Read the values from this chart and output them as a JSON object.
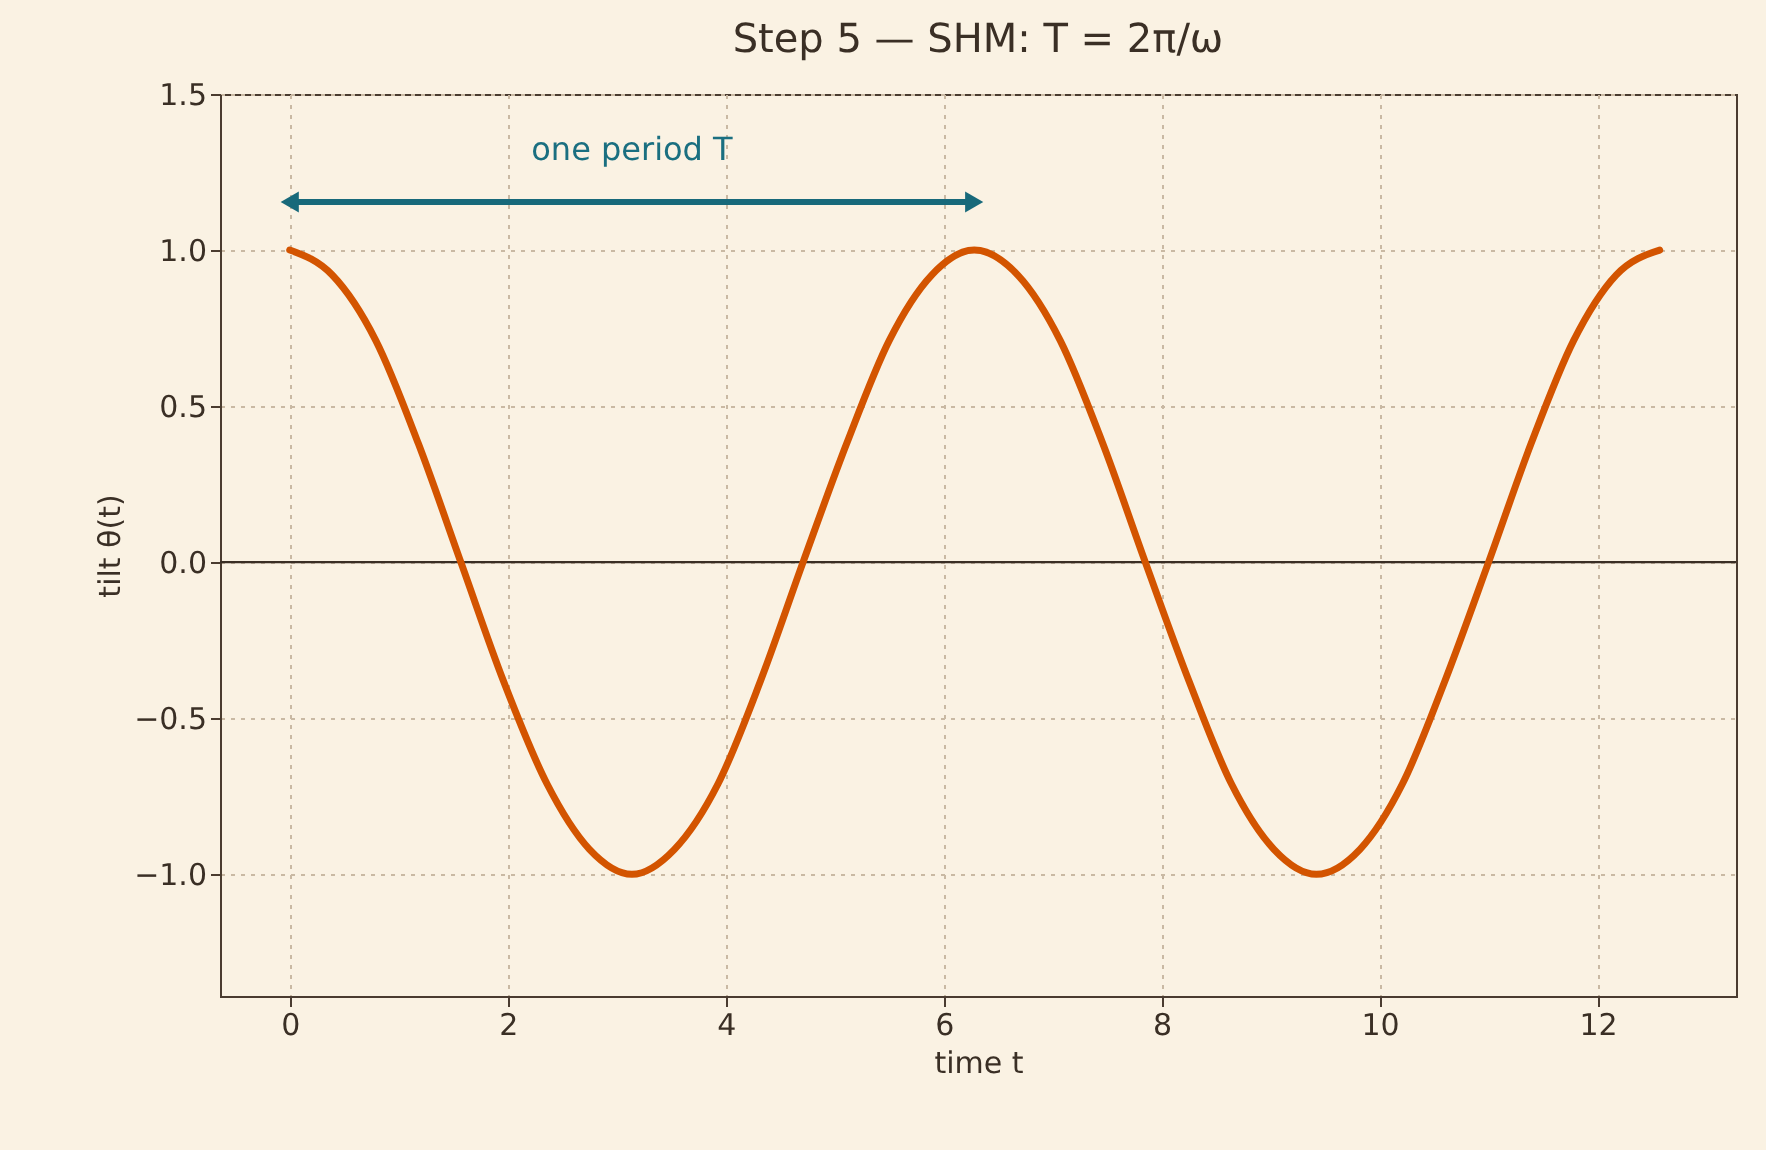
{
  "chart_data": {
    "type": "line",
    "title": "Step 5 — SHM: T = 2π/ω",
    "xlabel": "time t",
    "ylabel": "tilt θ(t)",
    "x": [
      0,
      0.39,
      0.79,
      1.18,
      1.57,
      1.96,
      2.36,
      2.75,
      3.14,
      3.53,
      3.93,
      4.32,
      4.71,
      5.11,
      5.5,
      5.89,
      6.28,
      6.68,
      7.07,
      7.46,
      7.85,
      8.25,
      8.64,
      9.03,
      9.42,
      9.82,
      10.21,
      10.6,
      11,
      11.39,
      11.78,
      12.17,
      12.57
    ],
    "series": [
      {
        "color": "#d35400",
        "values": [
          1,
          0.92,
          0.71,
          0.38,
          0,
          -0.38,
          -0.71,
          -0.92,
          -1,
          -0.92,
          -0.71,
          -0.38,
          0,
          0.38,
          0.71,
          0.92,
          1,
          0.92,
          0.71,
          0.38,
          0,
          -0.38,
          -0.71,
          -0.92,
          -1,
          -0.92,
          -0.71,
          -0.38,
          0,
          0.38,
          0.71,
          0.92,
          1
        ]
      }
    ],
    "xlim": [
      -0.64,
      13.27
    ],
    "ylim": [
      -1.39,
      1.5
    ],
    "xticks": [
      0,
      2,
      4,
      6,
      8,
      10,
      12
    ],
    "yticks": [
      {
        "value": -1,
        "label": "−1.0"
      },
      {
        "value": -0.5,
        "label": "−0.5"
      },
      {
        "value": 0,
        "label": "0.0"
      },
      {
        "value": 0.5,
        "label": "0.5"
      },
      {
        "value": 1,
        "label": "1.0"
      },
      {
        "value": 1.5,
        "label": "1.5"
      }
    ],
    "grid": true,
    "line_style": "solid",
    "marker": "none",
    "ref_lines": [
      {
        "axis": "y",
        "value": 0,
        "color": "#3a2f25"
      }
    ],
    "annotations": [
      "one period T"
    ]
  }
}
